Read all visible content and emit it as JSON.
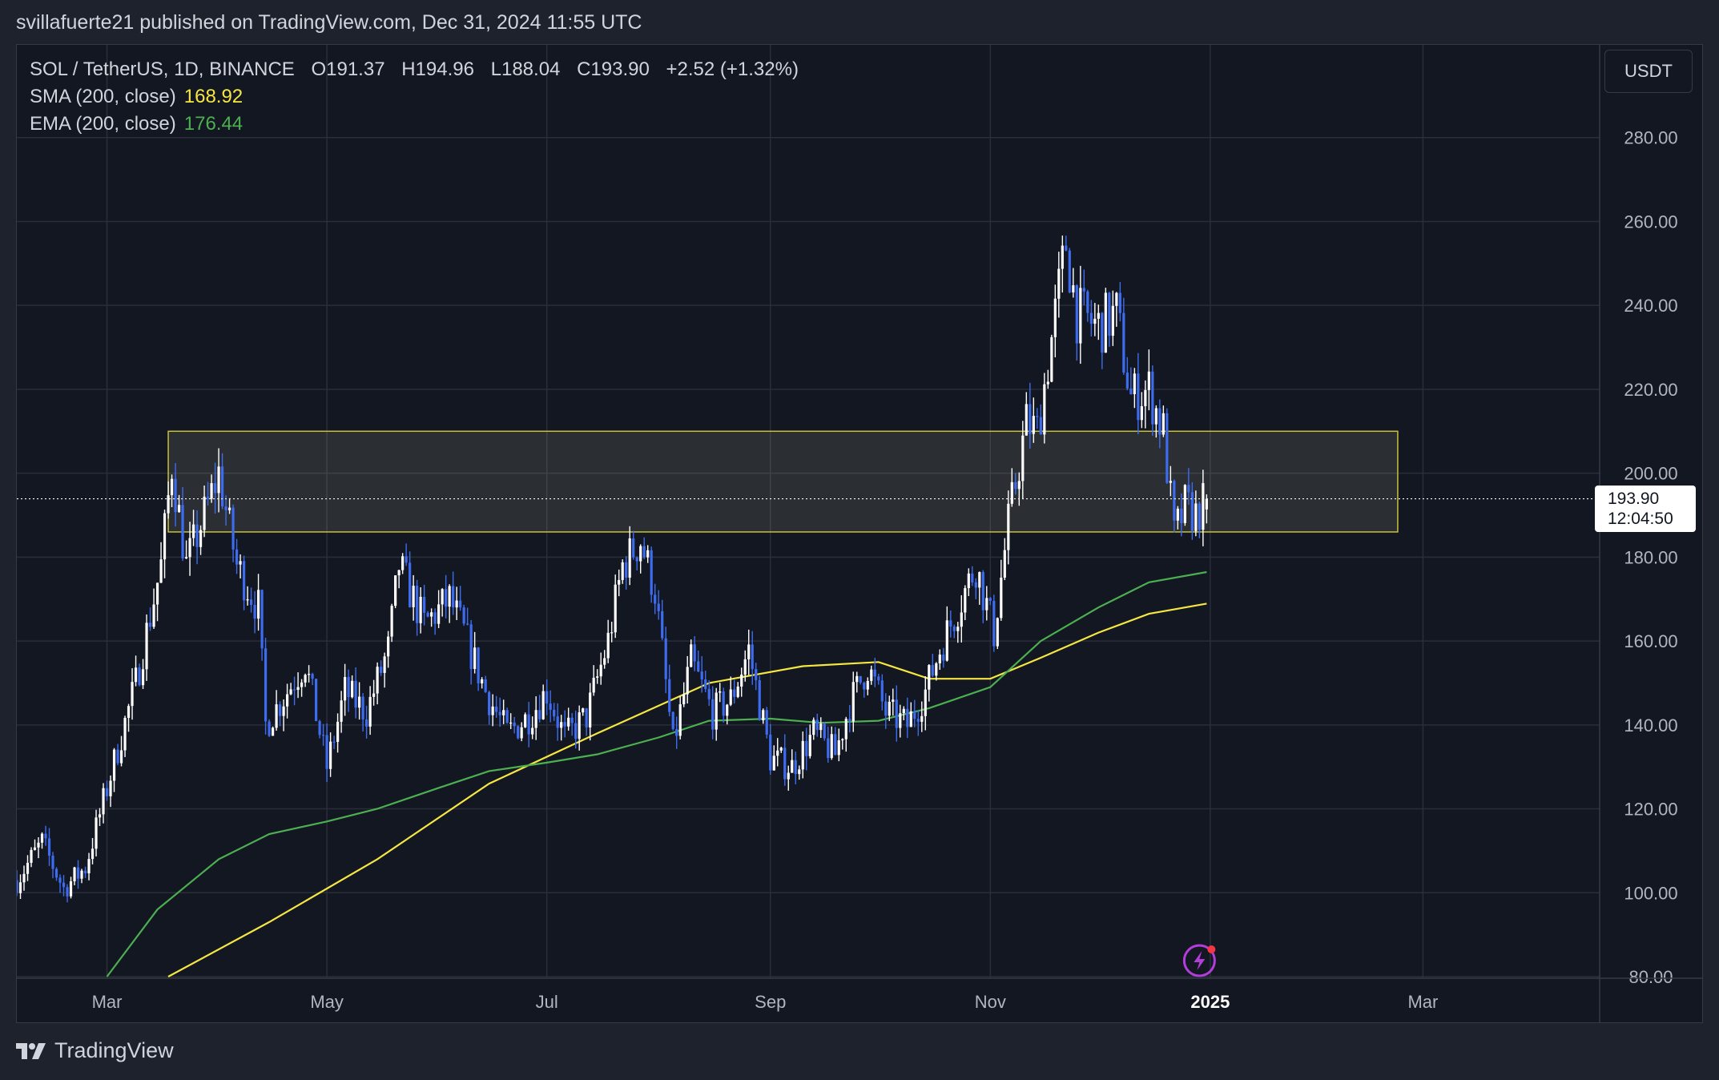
{
  "caption": "svillafuerte21 published on TradingView.com, Dec 31, 2024 11:55 UTC",
  "brand": "TradingView",
  "currency_button": "USDT",
  "legend": {
    "symbol": "SOL / TetherUS, 1D, BINANCE",
    "open": "O191.37",
    "high": "H194.96",
    "low": "L188.04",
    "close": "C193.90",
    "change": "+2.52 (+1.32%)",
    "sma_label": "SMA (200, close)",
    "sma_value": "168.92",
    "ema_label": "EMA (200, close)",
    "ema_value": "176.44"
  },
  "price_tag": {
    "price": "193.90",
    "countdown": "12:04:50"
  },
  "colors": {
    "background": "#131722",
    "grid": "#2a2e39",
    "candle_up": "#ffffff",
    "candle_down": "#3d6cf0",
    "sma": "#f5e642",
    "ema": "#4caf50",
    "zone_border": "#c8c13a",
    "zone_fill": "rgba(255,255,200,0.10)"
  },
  "chart_data": {
    "type": "candlestick",
    "timeframe": "1D",
    "ylim": [
      80,
      300
    ],
    "y_ticks": [
      "280.00",
      "260.00",
      "240.00",
      "220.00",
      "200.00",
      "180.00",
      "160.00",
      "140.00",
      "120.00",
      "100.00",
      "80.00"
    ],
    "x_ticks": [
      {
        "label": "Mar",
        "date": "2024-03-01",
        "bold": false
      },
      {
        "label": "May",
        "date": "2024-05-01",
        "bold": false
      },
      {
        "label": "Jul",
        "date": "2024-07-01",
        "bold": false
      },
      {
        "label": "Sep",
        "date": "2024-09-01",
        "bold": false
      },
      {
        "label": "Nov",
        "date": "2024-11-01",
        "bold": false
      },
      {
        "label": "2025",
        "date": "2025-01-01",
        "bold": true
      },
      {
        "label": "Mar",
        "date": "2025-03-01",
        "bold": false
      }
    ],
    "x_range": [
      "2024-02-05",
      "2025-04-19"
    ],
    "last_price": 193.9,
    "zone": {
      "date_from": "2024-03-18",
      "date_to": "2025-02-22",
      "low": 186,
      "high": 210
    },
    "price_path": [
      [
        "2024-02-05",
        103
      ],
      [
        "2024-02-12",
        112
      ],
      [
        "2024-02-18",
        101
      ],
      [
        "2024-02-24",
        106
      ],
      [
        "2024-03-02",
        128
      ],
      [
        "2024-03-09",
        150
      ],
      [
        "2024-03-16",
        178
      ],
      [
        "2024-03-19",
        202
      ],
      [
        "2024-03-23",
        178
      ],
      [
        "2024-03-28",
        190
      ],
      [
        "2024-04-01",
        200
      ],
      [
        "2024-04-06",
        178
      ],
      [
        "2024-04-12",
        168
      ],
      [
        "2024-04-14",
        140
      ],
      [
        "2024-04-20",
        148
      ],
      [
        "2024-04-25",
        155
      ],
      [
        "2024-05-01",
        130
      ],
      [
        "2024-05-06",
        148
      ],
      [
        "2024-05-12",
        143
      ],
      [
        "2024-05-18",
        158
      ],
      [
        "2024-05-21",
        178
      ],
      [
        "2024-05-28",
        164
      ],
      [
        "2024-06-04",
        170
      ],
      [
        "2024-06-08",
        162
      ],
      [
        "2024-06-14",
        148
      ],
      [
        "2024-06-20",
        138
      ],
      [
        "2024-06-26",
        142
      ],
      [
        "2024-07-01",
        148
      ],
      [
        "2024-07-06",
        137
      ],
      [
        "2024-07-12",
        142
      ],
      [
        "2024-07-18",
        160
      ],
      [
        "2024-07-22",
        178
      ],
      [
        "2024-07-27",
        184
      ],
      [
        "2024-07-31",
        172
      ],
      [
        "2024-08-05",
        135
      ],
      [
        "2024-08-10",
        155
      ],
      [
        "2024-08-16",
        143
      ],
      [
        "2024-08-21",
        146
      ],
      [
        "2024-08-26",
        158
      ],
      [
        "2024-09-01",
        132
      ],
      [
        "2024-09-07",
        130
      ],
      [
        "2024-09-13",
        138
      ],
      [
        "2024-09-19",
        133
      ],
      [
        "2024-09-23",
        145
      ],
      [
        "2024-09-28",
        154
      ],
      [
        "2024-10-03",
        143
      ],
      [
        "2024-10-09",
        140
      ],
      [
        "2024-10-14",
        148
      ],
      [
        "2024-10-18",
        158
      ],
      [
        "2024-10-23",
        168
      ],
      [
        "2024-10-28",
        178
      ],
      [
        "2024-11-02",
        162
      ],
      [
        "2024-11-06",
        188
      ],
      [
        "2024-11-11",
        212
      ],
      [
        "2024-11-14",
        210
      ],
      [
        "2024-11-18",
        232
      ],
      [
        "2024-11-22",
        255
      ],
      [
        "2024-11-25",
        238
      ],
      [
        "2024-12-01",
        235
      ],
      [
        "2024-12-06",
        238
      ],
      [
        "2024-12-10",
        218
      ],
      [
        "2024-12-15",
        220
      ],
      [
        "2024-12-19",
        210
      ],
      [
        "2024-12-22",
        185
      ],
      [
        "2024-12-25",
        192
      ],
      [
        "2024-12-28",
        190
      ],
      [
        "2024-12-31",
        193.9
      ]
    ],
    "series": [
      {
        "name": "SMA (200, close)",
        "color": "#f5e642",
        "points": [
          [
            "2024-03-18",
            80
          ],
          [
            "2024-04-15",
            93
          ],
          [
            "2024-05-15",
            108
          ],
          [
            "2024-06-15",
            126
          ],
          [
            "2024-07-15",
            138
          ],
          [
            "2024-08-15",
            150
          ],
          [
            "2024-09-10",
            154
          ],
          [
            "2024-10-01",
            155
          ],
          [
            "2024-10-15",
            151
          ],
          [
            "2024-11-01",
            151
          ],
          [
            "2024-11-15",
            156
          ],
          [
            "2024-12-01",
            162
          ],
          [
            "2024-12-15",
            166.5
          ],
          [
            "2024-12-31",
            168.92
          ]
        ]
      },
      {
        "name": "EMA (200, close)",
        "color": "#4caf50",
        "points": [
          [
            "2024-03-01",
            80
          ],
          [
            "2024-03-15",
            96
          ],
          [
            "2024-04-01",
            108
          ],
          [
            "2024-04-15",
            114
          ],
          [
            "2024-05-01",
            117
          ],
          [
            "2024-05-15",
            120
          ],
          [
            "2024-06-01",
            125
          ],
          [
            "2024-06-15",
            129
          ],
          [
            "2024-07-01",
            131
          ],
          [
            "2024-07-15",
            133
          ],
          [
            "2024-08-01",
            137
          ],
          [
            "2024-08-15",
            141
          ],
          [
            "2024-09-01",
            141.5
          ],
          [
            "2024-09-15",
            140.5
          ],
          [
            "2024-10-01",
            141
          ],
          [
            "2024-10-15",
            144
          ],
          [
            "2024-11-01",
            149
          ],
          [
            "2024-11-15",
            160
          ],
          [
            "2024-12-01",
            168
          ],
          [
            "2024-12-15",
            174
          ],
          [
            "2024-12-31",
            176.44
          ]
        ]
      }
    ]
  }
}
